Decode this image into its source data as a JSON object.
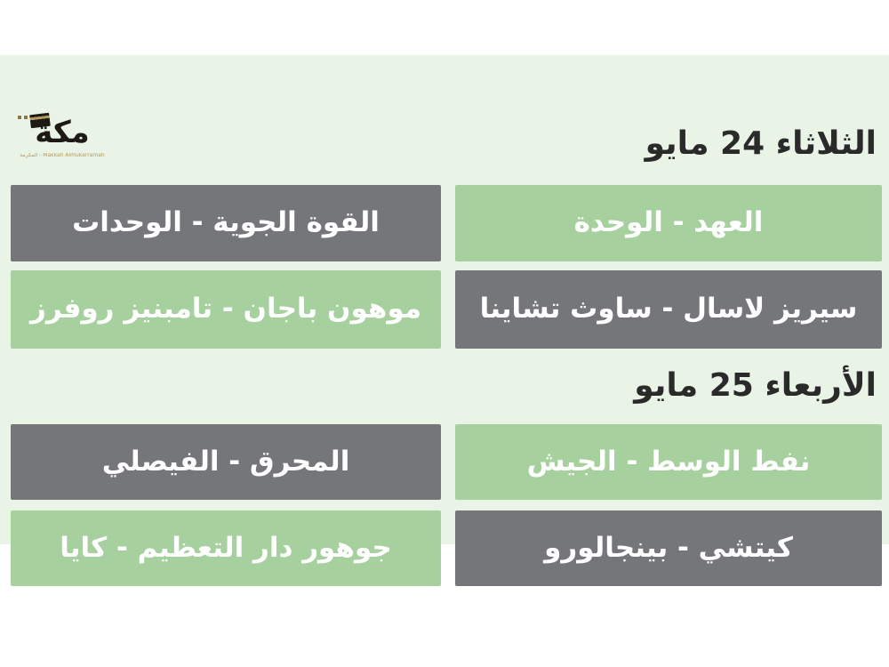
{
  "page": {
    "background": "#ffffff",
    "canvas_background": "#e9f3e6"
  },
  "colors": {
    "green_box": "#a6d19e",
    "gray_box": "#74767a",
    "heading_text": "#2a2a2a",
    "box_text": "#ffffff",
    "logo_ink": "#1d1a15",
    "logo_gold": "#b3995d"
  },
  "brand": {
    "wordmark": "مكة",
    "tagline": "المكرمة - Makkah Almukarramah",
    "icon": "kaaba-icon"
  },
  "sections": [
    {
      "heading": "الثلاثاء 24 مايو",
      "rows": [
        {
          "right": {
            "text": "العهد - الوحدة",
            "variant": "green"
          },
          "left": {
            "text": "القوة الجوية - الوحدات",
            "variant": "gray"
          }
        },
        {
          "right": {
            "text": "سيريز لاسال - ساوث تشاينا",
            "variant": "gray"
          },
          "left": {
            "text": "موهون باجان - تامبنيز روفرز",
            "variant": "green"
          }
        }
      ]
    },
    {
      "heading": "الأربعاء 25 مايو",
      "rows": [
        {
          "right": {
            "text": "نفط الوسط - الجيش",
            "variant": "green"
          },
          "left": {
            "text": "المحرق - الفيصلي",
            "variant": "gray"
          }
        },
        {
          "right": {
            "text": "كيتشي - بينجالورو",
            "variant": "gray"
          },
          "left": {
            "text": "جوهور دار التعظيم - كايا",
            "variant": "green"
          }
        }
      ]
    }
  ]
}
